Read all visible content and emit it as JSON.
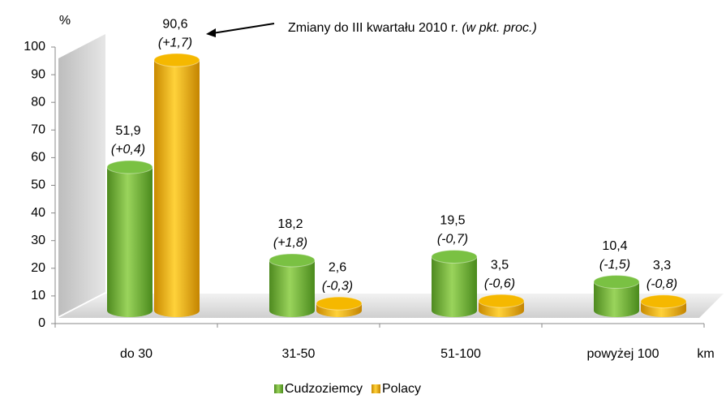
{
  "chart_data": {
    "type": "bar3d",
    "y_unit_label": "%",
    "x_unit_label": "km",
    "annotation": "Zmiany do III kwartału 2010 r.",
    "annotation_note": "(w pkt. proc.)",
    "categories": [
      "do 30",
      "31-50",
      "51-100",
      "powyżej 100"
    ],
    "series": [
      {
        "name": "Cudzoziemcy",
        "color": "#7ac143",
        "values": [
          51.9,
          18.2,
          19.5,
          10.4
        ],
        "value_labels": [
          "51,9",
          "18,2",
          "19,5",
          "10,4"
        ],
        "change_labels": [
          "(+0,4)",
          "(+1,8)",
          "(-0,7)",
          "(-1,5)"
        ]
      },
      {
        "name": "Polacy",
        "color": "#f5b800",
        "values": [
          90.6,
          2.6,
          3.5,
          3.3
        ],
        "value_labels": [
          "90,6",
          "2,6",
          "3,5",
          "3,3"
        ],
        "change_labels": [
          "(+1,7)",
          "(-0,3)",
          "(-0,6)",
          "(-0,8)"
        ]
      }
    ],
    "ylim": [
      0,
      100
    ],
    "yticks": [
      0,
      10,
      20,
      30,
      40,
      50,
      60,
      70,
      80,
      90,
      100
    ]
  }
}
